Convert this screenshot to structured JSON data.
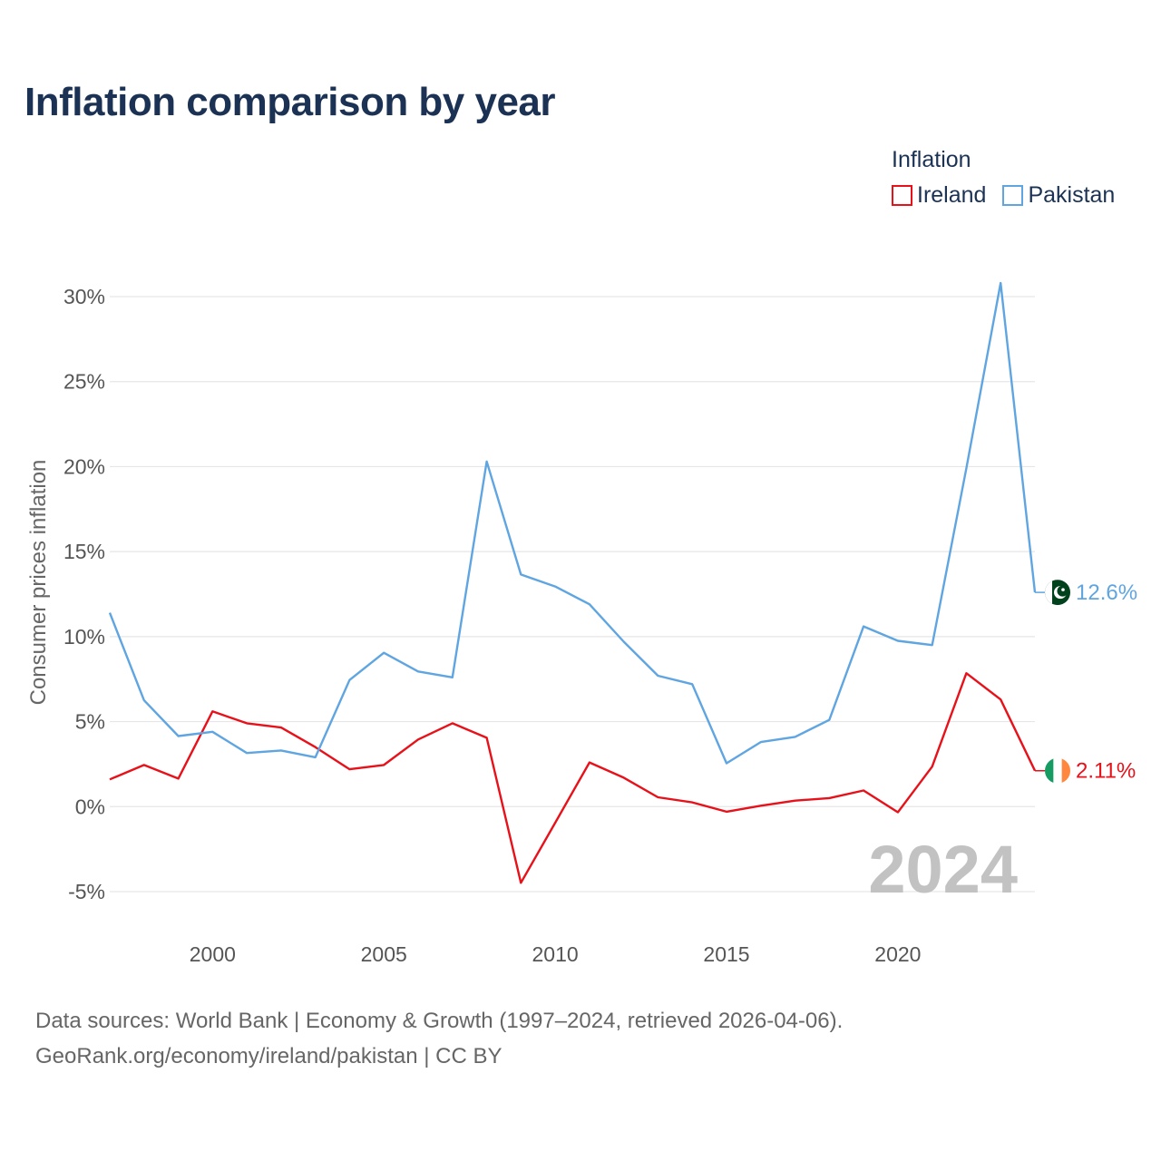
{
  "title": "Inflation comparison by year",
  "legend": {
    "title": "Inflation",
    "items": [
      {
        "name": "Ireland",
        "color": "#e8111a"
      },
      {
        "name": "Pakistan",
        "color": "#5fa5e1"
      }
    ]
  },
  "footer": {
    "line1": "Data sources: World Bank | Economy & Growth (1997–2024, retrieved 2026-04-06).",
    "line2": "GeoRank.org/economy/ireland/pakistan | CC BY"
  },
  "chart_data": {
    "type": "line",
    "title": "Inflation comparison by year",
    "ylabel": "Consumer prices inflation",
    "xlabel": "",
    "xlim": [
      1997,
      2024
    ],
    "ylim": [
      -5,
      30
    ],
    "yticks": [
      -5,
      0,
      5,
      10,
      15,
      20,
      25,
      30
    ],
    "ytick_labels": [
      "-5%",
      "0%",
      "5%",
      "10%",
      "15%",
      "20%",
      "25%",
      "30%"
    ],
    "xticks": [
      2000,
      2005,
      2010,
      2015,
      2020
    ],
    "xtick_labels": [
      "2000",
      "2005",
      "2010",
      "2015",
      "2020"
    ],
    "grid": true,
    "year_watermark": "2024",
    "x": [
      1997,
      1998,
      1999,
      2000,
      2001,
      2002,
      2003,
      2004,
      2005,
      2006,
      2007,
      2008,
      2009,
      2010,
      2011,
      2012,
      2013,
      2014,
      2015,
      2016,
      2017,
      2018,
      2019,
      2020,
      2021,
      2022,
      2023,
      2024
    ],
    "series": [
      {
        "name": "Ireland",
        "color": "#e8111a",
        "end_label": "2.11%",
        "values": [
          1.6,
          2.45,
          1.65,
          5.6,
          4.9,
          4.65,
          3.5,
          2.2,
          2.45,
          3.95,
          4.9,
          4.05,
          -4.48,
          -0.95,
          2.6,
          1.7,
          0.55,
          0.25,
          -0.3,
          0.05,
          0.35,
          0.5,
          0.95,
          -0.33,
          2.35,
          7.85,
          6.3,
          2.11
        ]
      },
      {
        "name": "Pakistan",
        "color": "#5fa5e1",
        "end_label": "12.6%",
        "values": [
          11.4,
          6.25,
          4.15,
          4.4,
          3.15,
          3.3,
          2.9,
          7.45,
          9.05,
          7.95,
          7.6,
          20.3,
          13.65,
          12.95,
          11.9,
          9.7,
          7.7,
          7.2,
          2.55,
          3.8,
          4.1,
          5.1,
          10.6,
          9.75,
          9.5,
          19.9,
          30.8,
          12.6
        ]
      }
    ]
  }
}
